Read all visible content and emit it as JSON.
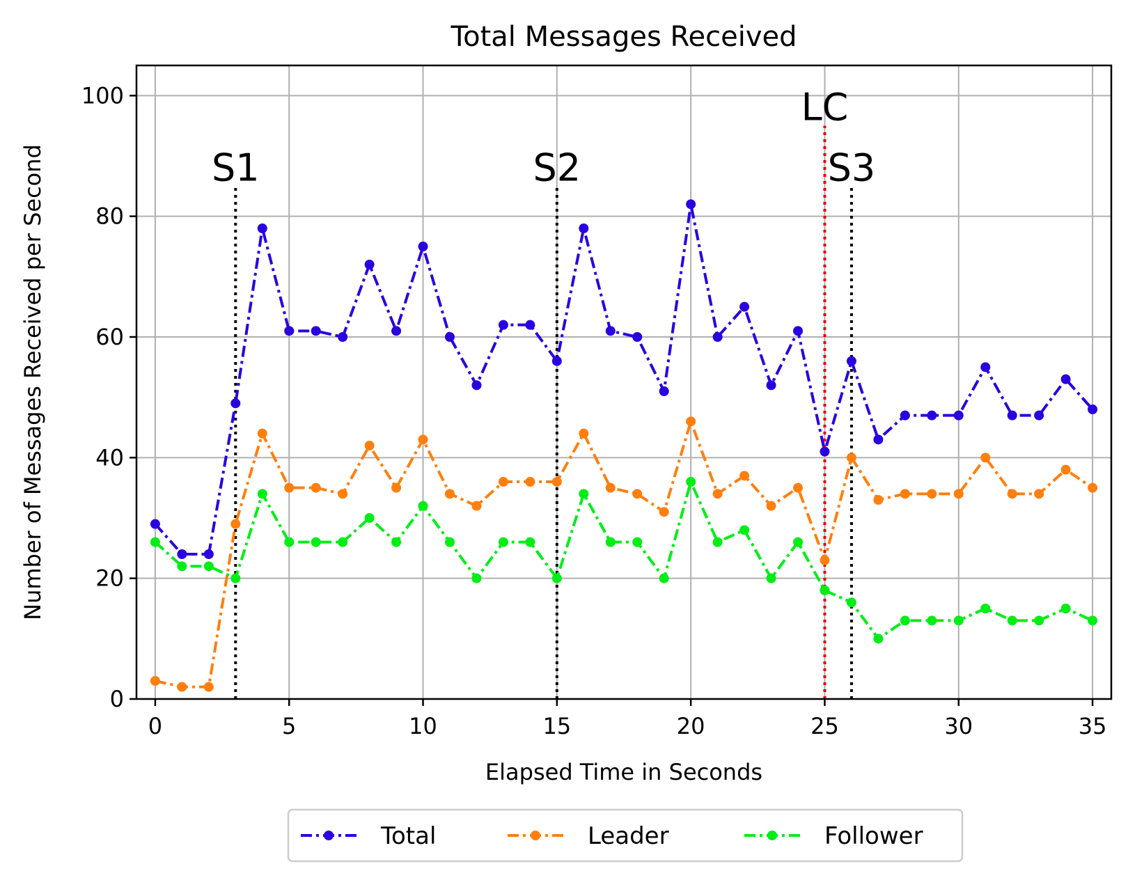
{
  "chart_data": {
    "type": "line",
    "title": "Total Messages Received",
    "xlabel": "Elapsed Time in Seconds",
    "ylabel": "Number of Messages Received per Second",
    "xlim": [
      -0.7,
      35.7
    ],
    "ylim": [
      0,
      105
    ],
    "xticks": [
      0,
      5,
      10,
      15,
      20,
      25,
      30,
      35
    ],
    "yticks": [
      0,
      20,
      40,
      60,
      80,
      100
    ],
    "grid": true,
    "legend_position": "bottom-center",
    "x": [
      0,
      1,
      2,
      3,
      4,
      5,
      6,
      7,
      8,
      9,
      10,
      11,
      12,
      13,
      14,
      15,
      16,
      17,
      18,
      19,
      20,
      21,
      22,
      23,
      24,
      25,
      26,
      27,
      28,
      29,
      30,
      31,
      32,
      33,
      34,
      35
    ],
    "series": [
      {
        "name": "Total",
        "color": "#2a00e0",
        "values": [
          29,
          24,
          24,
          49,
          78,
          61,
          61,
          60,
          72,
          61,
          75,
          60,
          52,
          62,
          62,
          56,
          78,
          61,
          60,
          51,
          82,
          60,
          65,
          52,
          61,
          41,
          56,
          43,
          47,
          47,
          47,
          55,
          47,
          47,
          53,
          48
        ]
      },
      {
        "name": "Leader",
        "color": "#ff7f0e",
        "values": [
          3,
          2,
          2,
          29,
          44,
          35,
          35,
          34,
          42,
          35,
          43,
          34,
          32,
          36,
          36,
          36,
          44,
          35,
          34,
          31,
          46,
          34,
          37,
          32,
          35,
          23,
          40,
          33,
          34,
          34,
          34,
          40,
          34,
          34,
          38,
          35
        ]
      },
      {
        "name": "Follower",
        "color": "#00ee16",
        "values": [
          26,
          22,
          22,
          20,
          34,
          26,
          26,
          26,
          30,
          26,
          32,
          26,
          20,
          26,
          26,
          20,
          34,
          26,
          26,
          20,
          36,
          26,
          28,
          20,
          26,
          18,
          16,
          10,
          13,
          13,
          13,
          15,
          13,
          13,
          15,
          13
        ]
      }
    ],
    "annotations": [
      {
        "label": "S1",
        "x": 3,
        "ymax": 85,
        "color": "#000000"
      },
      {
        "label": "S2",
        "x": 15,
        "ymax": 85,
        "color": "#000000"
      },
      {
        "label": "LC",
        "x": 25,
        "ymax": 95,
        "color": "#e60000"
      },
      {
        "label": "S3",
        "x": 26,
        "ymax": 85,
        "color": "#000000"
      }
    ]
  }
}
